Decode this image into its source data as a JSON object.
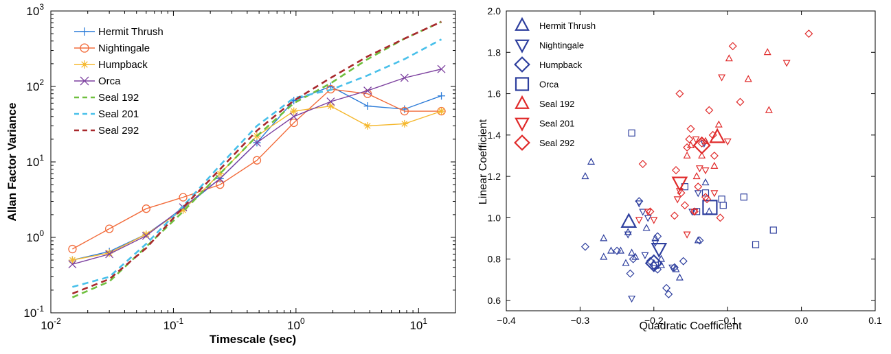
{
  "chart_data": [
    {
      "type": "line",
      "title": "",
      "xlabel": "Timescale (sec)",
      "ylabel": "Allan Factor Variance",
      "xscale": "log",
      "yscale": "log",
      "xlim": [
        0.01,
        20
      ],
      "ylim": [
        0.1,
        1000
      ],
      "grid": false,
      "legend_position": "top-left",
      "x": [
        0.015,
        0.03,
        0.06,
        0.12,
        0.24,
        0.48,
        0.96,
        1.92,
        3.84,
        7.68,
        15.36
      ],
      "xticks": [
        {
          "value": 0.01,
          "base": "10",
          "exp": "-2"
        },
        {
          "value": 0.1,
          "base": "10",
          "exp": "-1"
        },
        {
          "value": 1,
          "base": "10",
          "exp": "0"
        },
        {
          "value": 10,
          "base": "10",
          "exp": "1"
        }
      ],
      "yticks": [
        {
          "value": 0.1,
          "base": "10",
          "exp": "-1"
        },
        {
          "value": 1,
          "base": "10",
          "exp": "0"
        },
        {
          "value": 10,
          "base": "10",
          "exp": "1"
        },
        {
          "value": 100,
          "base": "10",
          "exp": "2"
        },
        {
          "value": 1000,
          "base": "10",
          "exp": "3"
        }
      ],
      "series": [
        {
          "name": "Hermit Thrush",
          "color": "#2b7bd8",
          "style": "solid",
          "marker": "plus",
          "values": [
            0.5,
            0.65,
            1.1,
            2.4,
            6.0,
            18,
            65,
            100,
            55,
            50,
            75
          ]
        },
        {
          "name": "Nightingale",
          "color": "#f26b3a",
          "style": "solid",
          "marker": "circle",
          "values": [
            0.7,
            1.3,
            2.4,
            3.4,
            5.0,
            10.5,
            33,
            92,
            80,
            47,
            47
          ]
        },
        {
          "name": "Humpback",
          "color": "#f5b82e",
          "style": "solid",
          "marker": "asterisk",
          "values": [
            0.5,
            0.62,
            1.1,
            2.3,
            7.0,
            22,
            47,
            55,
            30,
            32,
            47
          ]
        },
        {
          "name": "Orca",
          "color": "#7b3f9e",
          "style": "solid",
          "marker": "x",
          "values": [
            0.44,
            0.6,
            1.05,
            2.5,
            6.0,
            18,
            40,
            63,
            88,
            130,
            170
          ]
        },
        {
          "name": "Seal 192",
          "color": "#6fbf3e",
          "style": "dashed",
          "marker": "none",
          "values": [
            0.16,
            0.26,
            0.75,
            2.2,
            7.0,
            22,
            60,
            110,
            230,
            430,
            720
          ]
        },
        {
          "name": "Seal 201",
          "color": "#48c0ea",
          "style": "dashed",
          "marker": "none",
          "values": [
            0.22,
            0.3,
            0.82,
            2.6,
            9.0,
            30,
            70,
            90,
            140,
            230,
            420
          ]
        },
        {
          "name": "Seal 292",
          "color": "#a8282c",
          "style": "dashed",
          "marker": "none",
          "values": [
            0.18,
            0.28,
            0.72,
            2.5,
            8.0,
            26,
            65,
            130,
            250,
            430,
            720
          ]
        }
      ]
    },
    {
      "type": "scatter",
      "title": "",
      "xlabel": "Quadratic Coefficient",
      "ylabel": "Linear Coefficient",
      "xlim": [
        -0.4,
        0.1
      ],
      "ylim": [
        0.55,
        2.0
      ],
      "grid": false,
      "legend_position": "top-left",
      "xticks": [
        "−0.4",
        "−0.3",
        "−0.2",
        "−0.1",
        "0.0",
        "0.1"
      ],
      "xtick_values": [
        -0.4,
        -0.3,
        -0.2,
        -0.1,
        0.0,
        0.1
      ],
      "yticks": [
        "0.6",
        "0.8",
        "1.0",
        "1.2",
        "1.4",
        "1.6",
        "1.8",
        "2.0"
      ],
      "ytick_values": [
        0.6,
        0.8,
        1.0,
        1.2,
        1.4,
        1.6,
        1.8,
        2.0
      ],
      "series": [
        {
          "name": "Hermit Thrush",
          "color": "#2e3f9e",
          "marker": "triangle-up",
          "points": [
            [
              -0.293,
              1.2
            ],
            [
              -0.285,
              1.27
            ],
            [
              -0.268,
              0.9
            ],
            [
              -0.268,
              0.81
            ],
            [
              -0.258,
              0.84
            ],
            [
              -0.245,
              0.84
            ],
            [
              -0.238,
              0.78
            ],
            [
              -0.235,
              0.93
            ],
            [
              -0.23,
              0.83
            ],
            [
              -0.225,
              0.81
            ],
            [
              -0.21,
              0.95
            ],
            [
              -0.198,
              0.9
            ],
            [
              -0.19,
              0.8
            ],
            [
              -0.17,
              0.75
            ],
            [
              -0.165,
              0.71
            ],
            [
              -0.14,
              0.89
            ],
            [
              -0.13,
              1.17
            ],
            [
              -0.125,
              1.03
            ],
            [
              -0.19,
              0.77
            ],
            [
              -0.2,
              0.78
            ]
          ],
          "centroid": [
            -0.234,
            0.98
          ]
        },
        {
          "name": "Nightingale",
          "color": "#2e3f9e",
          "marker": "triangle-down",
          "points": [
            [
              -0.23,
              0.61
            ],
            [
              -0.22,
              1.07
            ],
            [
              -0.215,
              1.03
            ],
            [
              -0.208,
              1.0
            ],
            [
              -0.198,
              0.88
            ],
            [
              -0.175,
              0.76
            ],
            [
              -0.235,
              0.92
            ],
            [
              -0.212,
              0.82
            ],
            [
              -0.148,
              1.03
            ],
            [
              -0.14,
              1.12
            ],
            [
              -0.132,
              1.36
            ]
          ],
          "centroid": [
            -0.193,
            0.85
          ]
        },
        {
          "name": "Humpback",
          "color": "#2e3f9e",
          "marker": "diamond",
          "points": [
            [
              -0.293,
              0.86
            ],
            [
              -0.25,
              0.84
            ],
            [
              -0.232,
              0.73
            ],
            [
              -0.228,
              0.8
            ],
            [
              -0.205,
              0.79
            ],
            [
              -0.2,
              0.77
            ],
            [
              -0.195,
              0.91
            ],
            [
              -0.183,
              0.66
            ],
            [
              -0.18,
              0.63
            ],
            [
              -0.16,
              0.79
            ],
            [
              -0.172,
              0.76
            ],
            [
              -0.138,
              0.89
            ],
            [
              -0.22,
              1.08
            ],
            [
              -0.195,
              0.75
            ]
          ],
          "centroid": [
            -0.2,
            0.78
          ]
        },
        {
          "name": "Orca",
          "color": "#2e3f9e",
          "marker": "square",
          "points": [
            [
              -0.23,
              1.41
            ],
            [
              -0.158,
              1.15
            ],
            [
              -0.142,
              1.03
            ],
            [
              -0.13,
              1.12
            ],
            [
              -0.106,
              1.06
            ],
            [
              -0.108,
              1.09
            ],
            [
              -0.078,
              1.1
            ],
            [
              -0.062,
              0.87
            ],
            [
              -0.038,
              0.94
            ],
            [
              -0.198,
              0.77
            ]
          ],
          "centroid": [
            -0.124,
            1.05
          ]
        },
        {
          "name": "Seal 192",
          "color": "#e02a2a",
          "marker": "triangle-up",
          "points": [
            [
              -0.155,
              1.3
            ],
            [
              -0.15,
              1.35
            ],
            [
              -0.142,
              1.2
            ],
            [
              -0.135,
              1.3
            ],
            [
              -0.118,
              1.25
            ],
            [
              -0.112,
              1.45
            ],
            [
              -0.098,
              1.77
            ],
            [
              -0.072,
              1.67
            ],
            [
              -0.046,
              1.8
            ],
            [
              -0.044,
              1.52
            ],
            [
              -0.13,
              1.37
            ]
          ],
          "centroid": [
            -0.114,
            1.39
          ]
        },
        {
          "name": "Seal 201",
          "color": "#e02a2a",
          "marker": "triangle-down",
          "points": [
            [
              -0.22,
              0.99
            ],
            [
              -0.208,
              1.03
            ],
            [
              -0.2,
              0.99
            ],
            [
              -0.165,
              1.13
            ],
            [
              -0.155,
              0.92
            ],
            [
              -0.145,
              1.03
            ],
            [
              -0.138,
              1.24
            ],
            [
              -0.13,
              1.23
            ],
            [
              -0.118,
              1.12
            ],
            [
              -0.108,
              1.68
            ],
            [
              -0.1,
              1.37
            ],
            [
              -0.02,
              1.75
            ],
            [
              -0.143,
              1.38
            ],
            [
              -0.168,
              1.09
            ]
          ],
          "centroid": [
            -0.165,
            1.17
          ]
        },
        {
          "name": "Seal 292",
          "color": "#e02a2a",
          "marker": "diamond",
          "points": [
            [
              -0.215,
              1.26
            ],
            [
              -0.205,
              1.03
            ],
            [
              -0.172,
              1.01
            ],
            [
              -0.17,
              1.23
            ],
            [
              -0.165,
              1.6
            ],
            [
              -0.158,
              1.06
            ],
            [
              -0.155,
              1.34
            ],
            [
              -0.15,
              1.43
            ],
            [
              -0.145,
              1.03
            ],
            [
              -0.14,
              1.15
            ],
            [
              -0.135,
              1.36
            ],
            [
              -0.13,
              1.1
            ],
            [
              -0.128,
              1.09
            ],
            [
              -0.125,
              1.52
            ],
            [
              -0.12,
              1.4
            ],
            [
              -0.118,
              1.3
            ],
            [
              -0.11,
              1.0
            ],
            [
              -0.093,
              1.83
            ],
            [
              -0.083,
              1.56
            ],
            [
              0.01,
              1.89
            ],
            [
              -0.163,
              1.12
            ],
            [
              -0.152,
              1.38
            ]
          ],
          "centroid": [
            -0.135,
            1.35
          ]
        }
      ]
    }
  ]
}
